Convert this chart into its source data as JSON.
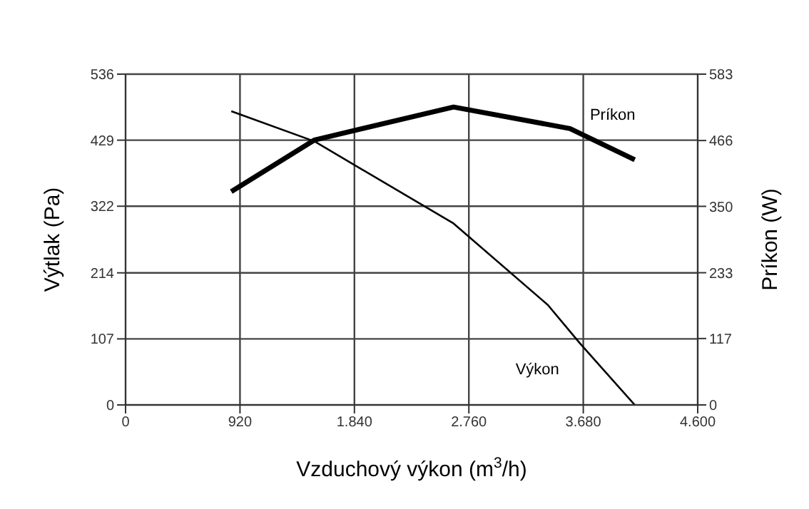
{
  "chart_data": {
    "type": "line",
    "xlabel": "Vzduchový výkon (m$^{3}$/h)",
    "ylabel": "Výtlak (Pa)",
    "y2label": "Príkon (W)",
    "series": [
      {
        "name": "Výkon",
        "color": "#000000",
        "x": [
          850,
          1520,
          2637,
          3395,
          3652,
          4094
        ],
        "values": [
          476,
          427,
          294,
          162,
          100,
          0
        ]
      },
      {
        "name": "Príkon",
        "color": "#000000",
        "axis": "y2",
        "x": [
          850,
          1520,
          2637,
          3573,
          4094
        ],
        "values": [
          376,
          467,
          525,
          487,
          432
        ]
      }
    ],
    "xlim": [
      0,
      4600
    ],
    "xticks": [
      0,
      920,
      {
        "value": 1840,
        "label": "1.840"
      },
      {
        "value": 2760,
        "label": "2.760"
      },
      {
        "value": 3680,
        "label": "3.680"
      },
      {
        "value": 4600,
        "label": "4.600"
      }
    ],
    "ylim": [
      0,
      536
    ],
    "yticks": [
      0,
      107,
      214,
      322,
      429,
      536
    ],
    "y2lim": [
      0,
      583
    ],
    "y2ticks": [
      0,
      117,
      233,
      350,
      466,
      583
    ],
    "grid": true,
    "marker": "none",
    "line_style": "solid"
  }
}
